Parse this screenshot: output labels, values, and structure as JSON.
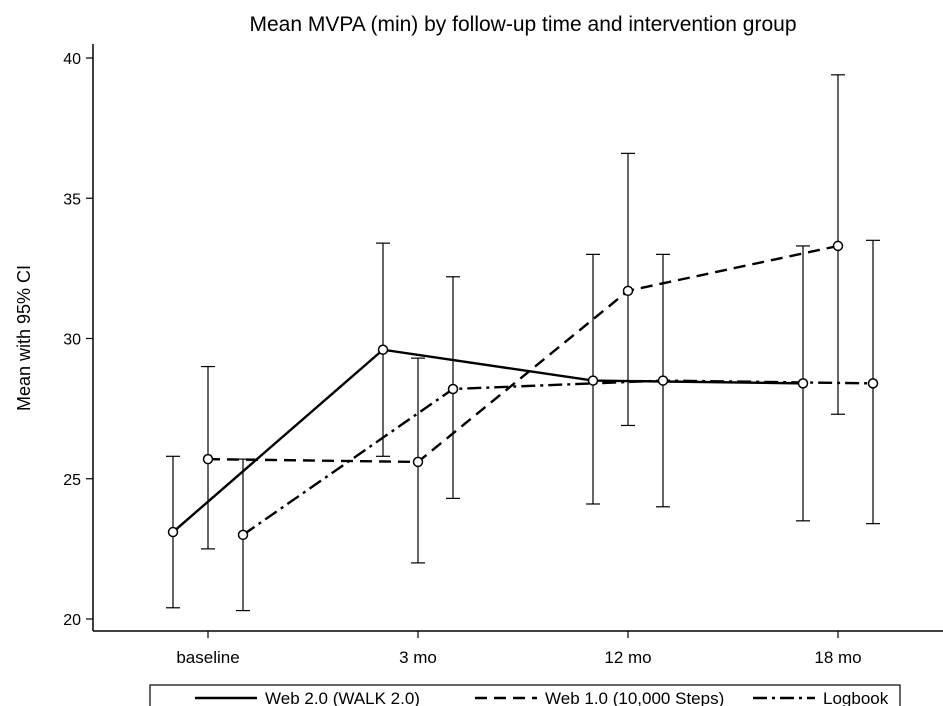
{
  "chart_data": {
    "type": "line",
    "title": "Mean MVPA (min) by follow-up time and intervention group",
    "xlabel": "",
    "ylabel": "Mean with 95% CI",
    "categories": [
      "baseline",
      "3 mo",
      "12 mo",
      "18 mo"
    ],
    "yticks": [
      20,
      25,
      30,
      35,
      40
    ],
    "ylim": [
      20,
      40
    ],
    "grid": false,
    "legend_position": "bottom",
    "series": [
      {
        "name": "Web 2.0 (WALK 2.0)",
        "dash": "solid",
        "values": [
          23.1,
          29.6,
          28.5,
          28.4
        ],
        "ci_low": [
          20.4,
          25.8,
          24.1,
          23.5
        ],
        "ci_high": [
          25.8,
          33.4,
          33.0,
          33.3
        ]
      },
      {
        "name": "Web 1.0 (10,000 Steps)",
        "dash": "dash",
        "values": [
          25.7,
          25.6,
          31.7,
          33.3
        ],
        "ci_low": [
          22.5,
          22.0,
          26.9,
          27.3
        ],
        "ci_high": [
          29.0,
          29.3,
          36.6,
          39.4
        ]
      },
      {
        "name": "Logbook",
        "dash": "dashdot",
        "values": [
          23.0,
          28.2,
          28.5,
          28.4
        ],
        "ci_low": [
          20.3,
          24.3,
          24.0,
          23.4
        ],
        "ci_high": [
          25.7,
          32.2,
          33.0,
          33.5
        ]
      }
    ]
  }
}
